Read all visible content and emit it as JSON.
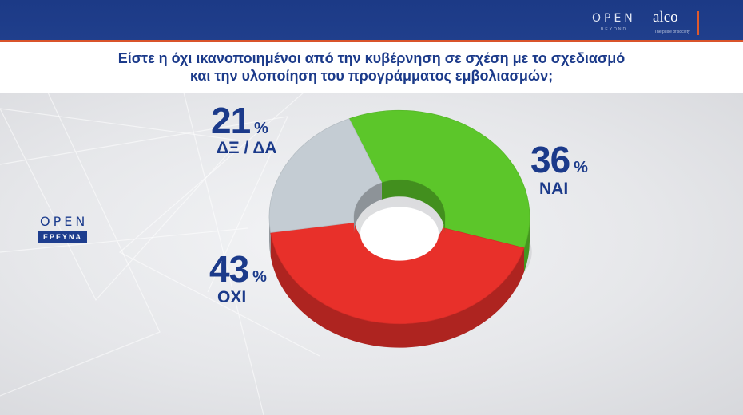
{
  "header": {
    "brand_open": "OPEN",
    "brand_beyond": "BEYOND",
    "brand_alco": "alco",
    "brand_alco_sub": "The pulse of society"
  },
  "title_line1": "Είστε η όχι ικανοποιημένοι από την κυβέρνηση σε σχέση με το σχεδιασμό",
  "title_line2": "και την υλοποίηση του προγράμματος εμβολιασμών;",
  "logo": {
    "open": "OPEN",
    "erevna": "ΕΡΕΥΝΑ"
  },
  "chart_data": {
    "type": "pie",
    "donut": true,
    "title": "Είστε η όχι ικανοποιημένοι από την κυβέρνηση σε σχέση με το σχεδιασμό και την υλοποίηση του προγράμματος εμβολιασμών;",
    "unit": "%",
    "categories": [
      "ΝΑΙ",
      "ΟΧΙ",
      "ΔΞ / ΔΑ"
    ],
    "values": [
      36,
      43,
      21
    ],
    "colors": [
      "#5cc62a",
      "#e8302a",
      "#c4ccd3"
    ],
    "labels": [
      {
        "name": "ΝΑΙ",
        "value": "36",
        "symbol": "%"
      },
      {
        "name": "ΟΧΙ",
        "value": "43",
        "symbol": "%"
      },
      {
        "name": "ΔΞ / ΔΑ",
        "value": "21",
        "symbol": "%"
      }
    ]
  }
}
